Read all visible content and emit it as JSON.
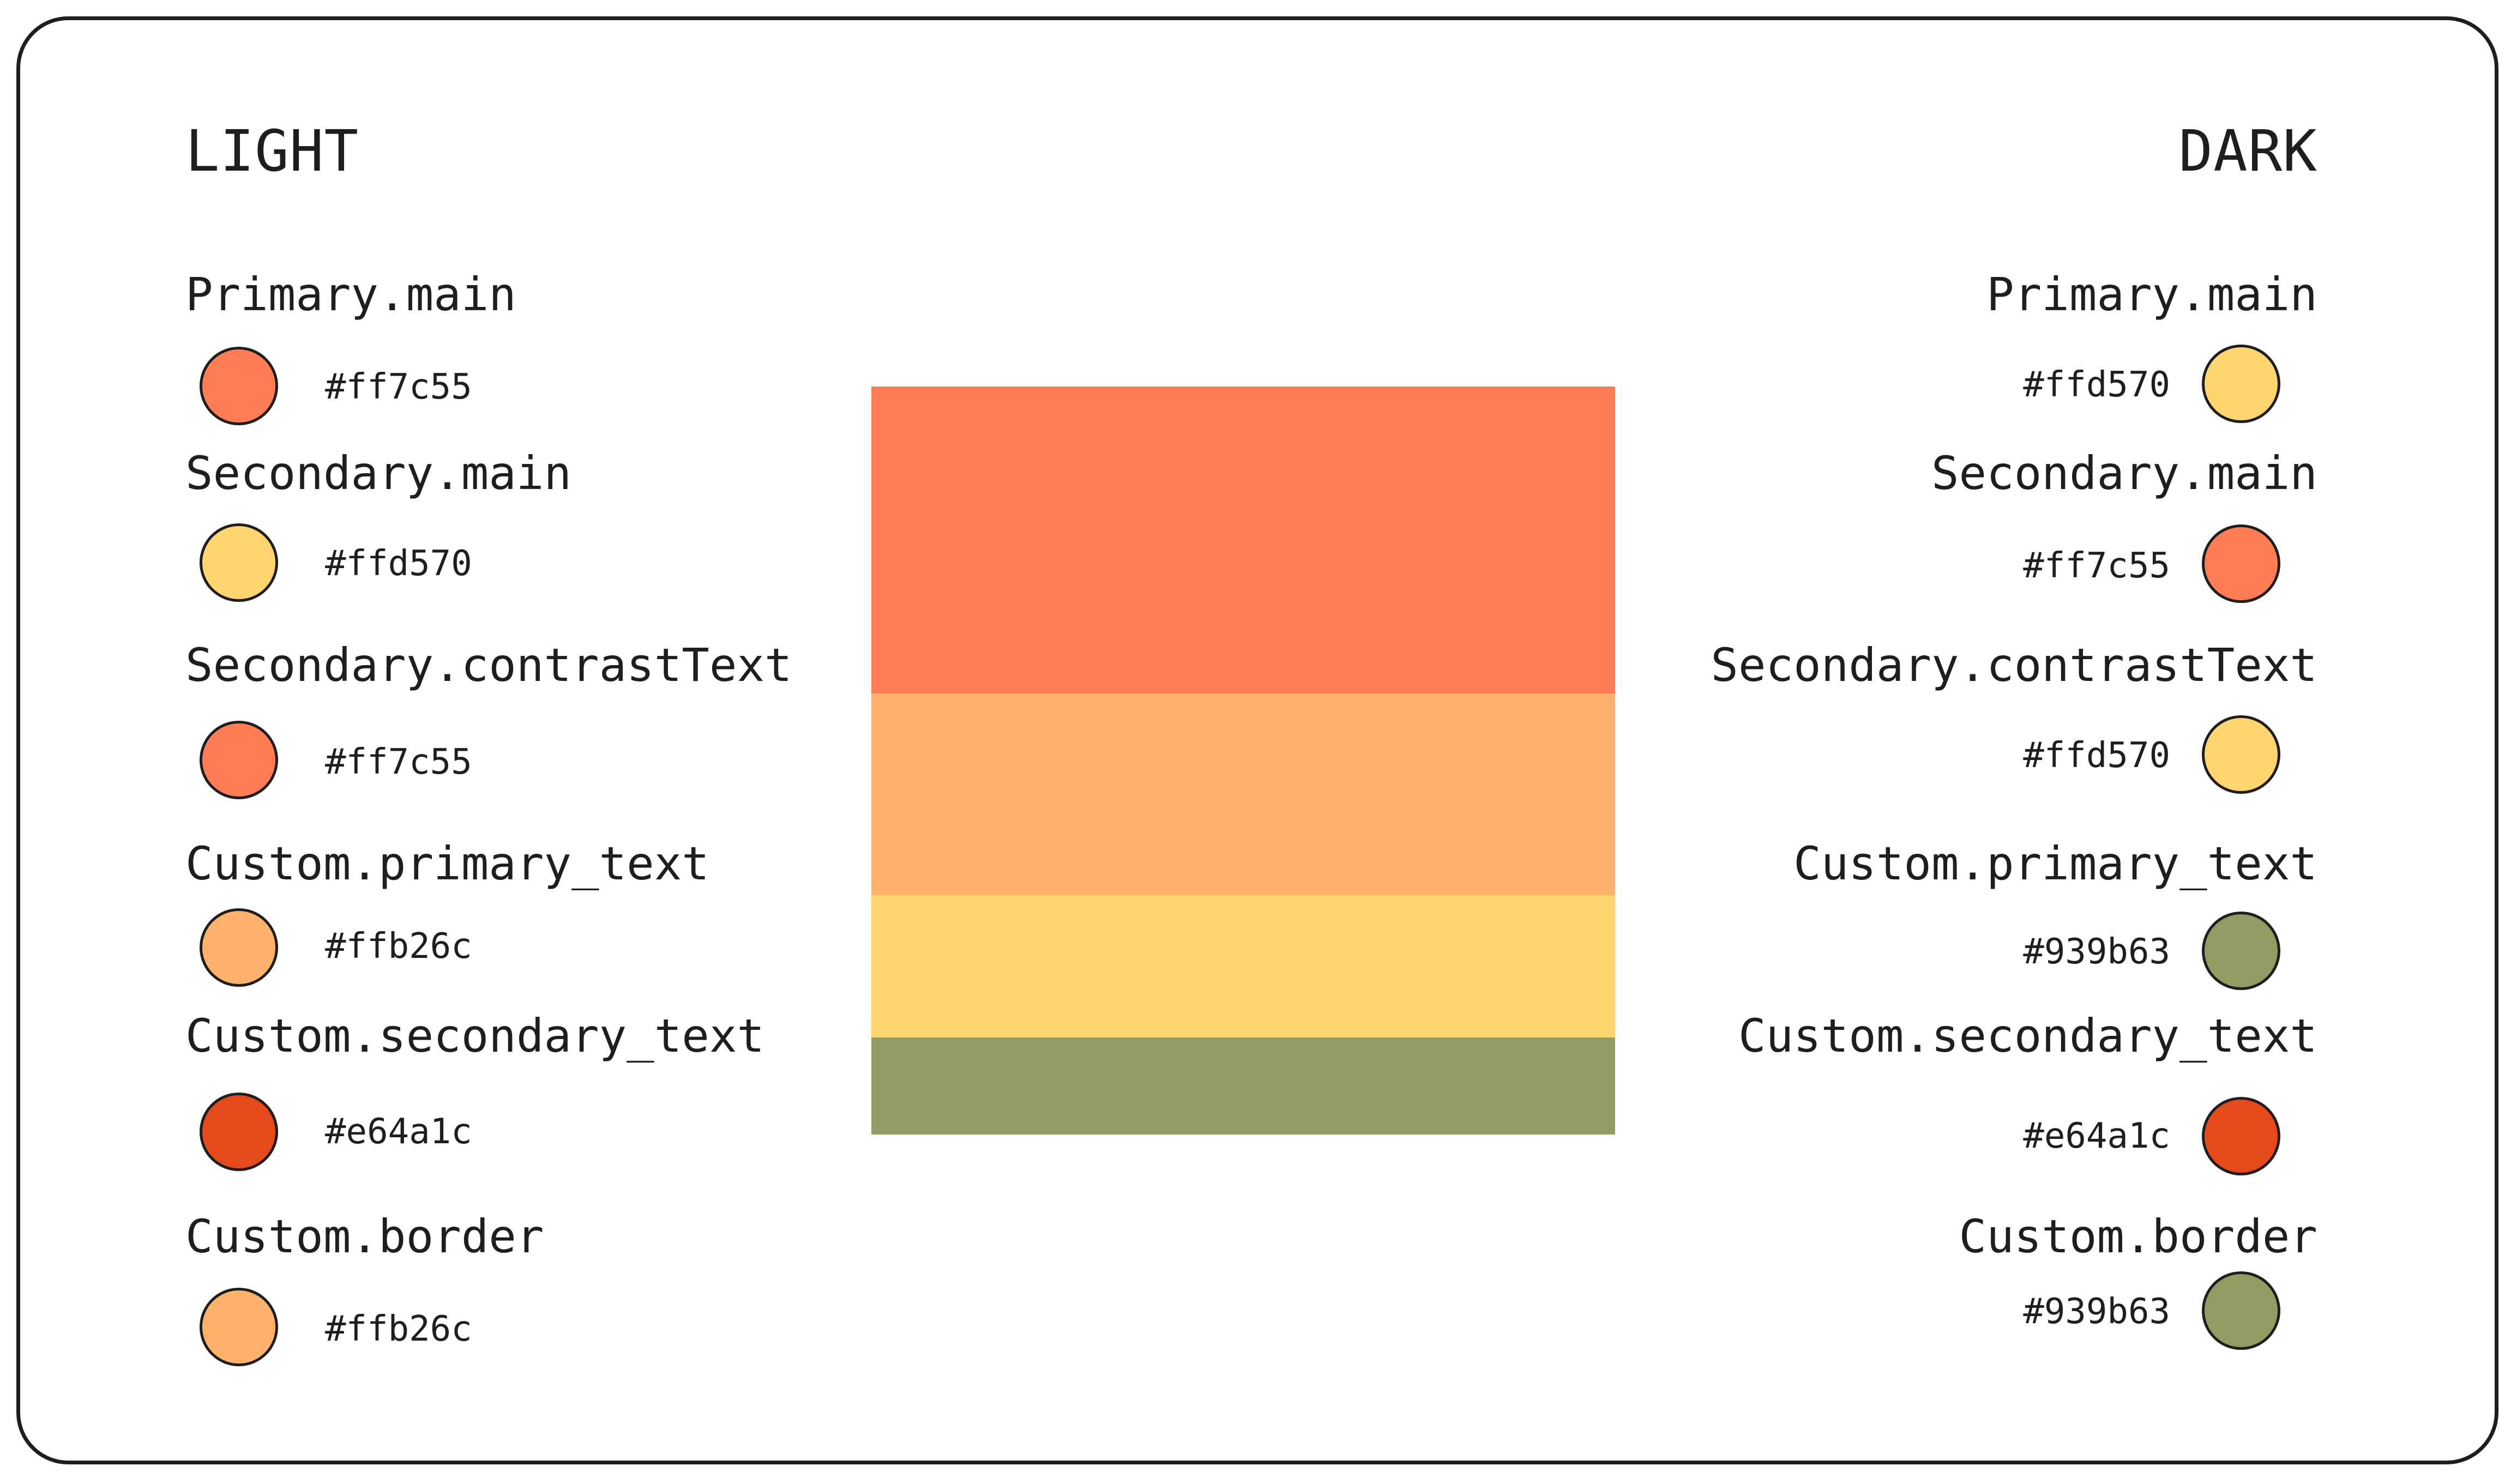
{
  "light": {
    "title": "LIGHT",
    "items": [
      {
        "label": "Primary.main",
        "hex": "#ff7c55",
        "color": "#ff7c55"
      },
      {
        "label": "Secondary.main",
        "hex": "#ffd570",
        "color": "#ffd570"
      },
      {
        "label": "Secondary.contrastText",
        "hex": "#ff7c55",
        "color": "#ff7c55"
      },
      {
        "label": "Custom.primary_text",
        "hex": "#ffb26c",
        "color": "#ffb26c"
      },
      {
        "label": "Custom.secondary_text",
        "hex": "#e64a1c",
        "color": "#e64a1c"
      },
      {
        "label": "Custom.border",
        "hex": "#ffb26c",
        "color": "#ffb26c"
      }
    ]
  },
  "dark": {
    "title": "DARK",
    "items": [
      {
        "label": "Primary.main",
        "hex": "#ffd570",
        "color": "#ffd570"
      },
      {
        "label": "Secondary.main",
        "hex": "#ff7c55",
        "color": "#ff7c55"
      },
      {
        "label": "Secondary.contrastText",
        "hex": "#ffd570",
        "color": "#ffd570"
      },
      {
        "label": "Custom.primary_text",
        "hex": "#939b63",
        "color": "#939b63"
      },
      {
        "label": "Custom.secondary_text",
        "hex": "#e64a1c",
        "color": "#e64a1c"
      },
      {
        "label": "Custom.border",
        "hex": "#939b63",
        "color": "#939b63"
      }
    ]
  },
  "stack": {
    "bands": [
      {
        "color": "#ff7c55",
        "share": 0.41
      },
      {
        "color": "#ffb26c",
        "share": 0.27
      },
      {
        "color": "#ffd570",
        "share": 0.19
      },
      {
        "color": "#939b63",
        "share": 0.13
      }
    ]
  }
}
